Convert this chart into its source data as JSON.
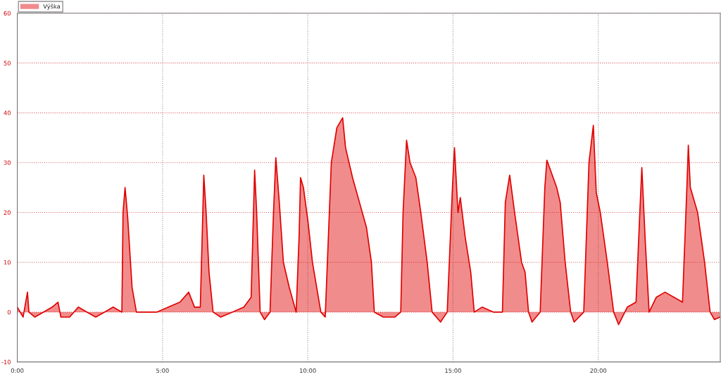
{
  "chart_data": {
    "type": "area",
    "legend": "top left",
    "grid": true,
    "xlim": [
      0,
      24.2
    ],
    "ylim": [
      -10,
      60
    ],
    "xticks": [
      {
        "value": 0,
        "label": "0:00"
      },
      {
        "value": 5,
        "label": "5:00"
      },
      {
        "value": 10,
        "label": "10:00"
      },
      {
        "value": 15,
        "label": "15:00"
      },
      {
        "value": 20,
        "label": "20:00"
      }
    ],
    "yticks": [
      -10,
      0,
      10,
      20,
      30,
      40,
      50,
      60
    ],
    "series": [
      {
        "name": "Výška",
        "color": "#e00000",
        "x": [
          0,
          0.2,
          0.35,
          0.4,
          0.6,
          0.9,
          1.2,
          1.4,
          1.5,
          1.8,
          2.1,
          2.4,
          2.7,
          3.0,
          3.3,
          3.6,
          3.64,
          3.71,
          3.8,
          3.95,
          4.1,
          4.4,
          4.8,
          5.2,
          5.6,
          5.9,
          6.1,
          6.3,
          6.42,
          6.5,
          6.6,
          6.74,
          7.0,
          7.4,
          7.8,
          8.05,
          8.17,
          8.24,
          8.36,
          8.51,
          8.7,
          8.82,
          8.9,
          9.02,
          9.16,
          9.36,
          9.6,
          9.7,
          9.75,
          9.85,
          10.01,
          10.16,
          10.45,
          10.6,
          10.81,
          11.0,
          11.2,
          11.3,
          11.54,
          11.78,
          12.02,
          12.19,
          12.29,
          12.6,
          13.0,
          13.2,
          13.28,
          13.4,
          13.52,
          13.72,
          13.89,
          14.11,
          14.28,
          14.57,
          14.8,
          14.98,
          15.05,
          15.17,
          15.25,
          15.42,
          15.61,
          15.73,
          16.0,
          16.4,
          16.7,
          16.8,
          16.95,
          17.12,
          17.36,
          17.48,
          17.6,
          17.72,
          18.0,
          18.16,
          18.23,
          18.57,
          18.69,
          18.86,
          19.05,
          19.17,
          19.5,
          19.68,
          19.83,
          19.93,
          20.07,
          20.31,
          20.53,
          20.7,
          21.0,
          21.3,
          21.43,
          21.5,
          21.62,
          21.75,
          22.0,
          22.3,
          22.6,
          22.9,
          23.05,
          23.1,
          23.17,
          23.42,
          23.66,
          23.85,
          24.0,
          24.19
        ],
        "values": [
          1,
          -1,
          4,
          0,
          -1,
          0,
          1,
          2,
          -1,
          -1,
          1,
          0,
          -1,
          0,
          1,
          0,
          20,
          25,
          19,
          5,
          0,
          0,
          0,
          1,
          2,
          4,
          1,
          1,
          27.5,
          20,
          8,
          0,
          -1,
          0,
          1,
          3,
          28.5,
          20,
          0,
          -1.5,
          0,
          20,
          31,
          22,
          10,
          5,
          0,
          15,
          27,
          25,
          18,
          10,
          0,
          -1,
          30,
          37,
          39,
          33,
          27,
          22,
          17,
          10,
          0,
          -1,
          -1,
          0,
          20,
          34.5,
          30,
          27,
          20,
          10,
          0,
          -2,
          0,
          25,
          33,
          20,
          23,
          15,
          8,
          0,
          1,
          0,
          0,
          22,
          27.5,
          20,
          10,
          8,
          0,
          -2,
          0,
          25,
          30.5,
          25,
          22,
          10,
          0,
          -2,
          0,
          30,
          37.5,
          24,
          20,
          10,
          0,
          -2.5,
          1,
          2,
          20,
          29,
          14,
          0,
          3,
          4,
          3,
          2,
          25,
          33.5,
          25,
          20,
          10,
          0,
          -1.5,
          -1
        ]
      }
    ]
  }
}
